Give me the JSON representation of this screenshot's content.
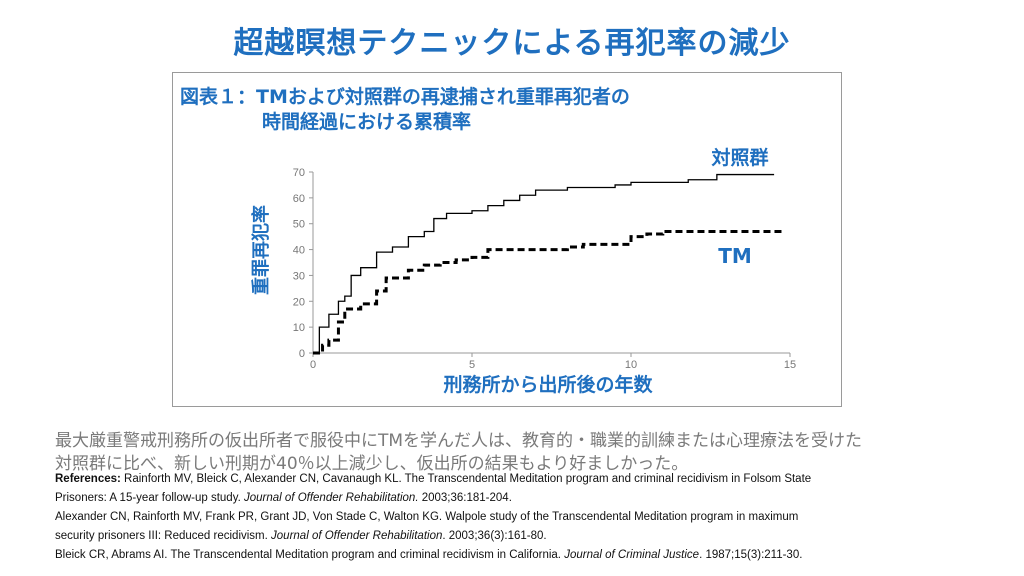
{
  "slide_title": "超越瞑想テクニックによる再犯率の減少",
  "chart_data": {
    "type": "line",
    "title_line1": "図表１：TMおよび対照群の再逮捕され重罪再犯者の",
    "title_line2": "時間経過における累積率",
    "xlabel": "刑務所から出所後の年数",
    "ylabel": "重罪再犯率",
    "xlim": [
      0,
      15
    ],
    "ylim": [
      0,
      70
    ],
    "xticks": [
      "0",
      "5",
      "10",
      "15"
    ],
    "yticks": [
      "0",
      "10",
      "20",
      "30",
      "40",
      "50",
      "60",
      "70"
    ],
    "grid": false,
    "step": true,
    "series": [
      {
        "name": "対照群",
        "style": "solid",
        "color": "#000000",
        "x": [
          0,
          0.2,
          0.5,
          0.8,
          1.0,
          1.2,
          1.5,
          2.0,
          2.5,
          3.0,
          3.5,
          3.8,
          4.2,
          5.0,
          5.5,
          6.0,
          6.5,
          7.0,
          8.0,
          9.0,
          9.5,
          10.0,
          11.0,
          11.8,
          12.7,
          14.5
        ],
        "y": [
          0,
          10,
          15,
          20,
          22,
          30,
          33,
          39,
          41,
          45,
          47,
          52,
          54,
          55,
          57,
          59,
          61,
          63,
          64,
          64,
          65,
          66,
          66,
          67,
          69,
          69
        ]
      },
      {
        "name": "TM",
        "style": "dashed",
        "color": "#000000",
        "x": [
          0,
          0.3,
          0.5,
          0.8,
          1.0,
          1.5,
          2.0,
          2.3,
          3.0,
          3.5,
          4.0,
          4.5,
          5.0,
          5.5,
          7.0,
          8.0,
          8.5,
          9.5,
          10.0,
          10.5,
          11.0,
          14.8
        ],
        "y": [
          0,
          3,
          5,
          12,
          17,
          19,
          24,
          29,
          32,
          34,
          35,
          36,
          37,
          40,
          40,
          41,
          42,
          42,
          45,
          46,
          47,
          47
        ]
      }
    ]
  },
  "caption": {
    "line1": "最大厳重警戒刑務所の仮出所者で服役中にTMを学んだ人は、教育的・職業的訓練または心理療法を受けた",
    "line2": "対照群に比べ、新しい刑期が40％以上減少し、仮出所の結果もより好ましかった。"
  },
  "references": {
    "label": "References:",
    "ref1_a": " Rainforth MV, Bleick C, Alexander CN, Cavanaugh KL. The Transcendental Meditation program and criminal recidivism in Folsom State",
    "ref1_b": "Prisoners: A 15-year follow-up study. ",
    "ref1_journal": "Journal of Offender Rehabilitation.",
    "ref1_c": " 2003;36:181-204.",
    "ref2_a": "Alexander CN, Rainforth MV, Frank PR, Grant JD, Von Stade C, Walton KG. Walpole study of the Transcendental Meditation program in maximum",
    "ref2_b": "security prisoners III: Reduced recidivism. ",
    "ref2_journal": "Journal of Offender Rehabilitation",
    "ref2_c": ". 2003;36(3):161-80.",
    "ref3_a": "Bleick CR, Abrams AI. The Transcendental Meditation program and criminal recidivism in California. ",
    "ref3_journal": "Journal of Criminal Justice",
    "ref3_c": ". 1987;15(3):211-30."
  },
  "colors": {
    "accent": "#1f6fbf",
    "caption": "#7a7a7a"
  }
}
